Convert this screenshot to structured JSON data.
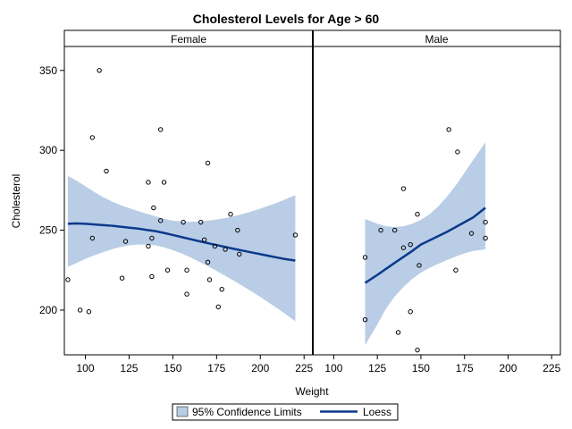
{
  "chart_data": {
    "type": "scatter",
    "title": "Cholesterol Levels for Age > 60",
    "xlabel": "Weight",
    "ylabel": "Cholesterol",
    "xlim": [
      88,
      230
    ],
    "ylim": [
      172,
      365
    ],
    "xticks": [
      100,
      125,
      150,
      175,
      200,
      225
    ],
    "yticks": [
      200,
      250,
      300,
      350
    ],
    "grid": false,
    "legend_position": "bottom",
    "colors": {
      "band": "#b9cde6",
      "line": "#0b3a8c",
      "marker": "#000000",
      "frame": "#000000"
    },
    "legend": [
      {
        "label": "95% Confidence Limits",
        "kind": "band"
      },
      {
        "label": "Loess",
        "kind": "line"
      }
    ],
    "panels": [
      {
        "name": "Female",
        "points": [
          [
            90,
            219
          ],
          [
            97,
            200
          ],
          [
            102,
            199
          ],
          [
            104,
            308
          ],
          [
            104,
            245
          ],
          [
            108,
            350
          ],
          [
            112,
            287
          ],
          [
            121,
            220
          ],
          [
            123,
            243
          ],
          [
            136,
            240
          ],
          [
            136,
            280
          ],
          [
            138,
            245
          ],
          [
            138,
            221
          ],
          [
            139,
            264
          ],
          [
            143,
            313
          ],
          [
            143,
            256
          ],
          [
            145,
            280
          ],
          [
            147,
            225
          ],
          [
            156,
            255
          ],
          [
            158,
            225
          ],
          [
            158,
            210
          ],
          [
            166,
            255
          ],
          [
            168,
            244
          ],
          [
            170,
            292
          ],
          [
            170,
            230
          ],
          [
            171,
            219
          ],
          [
            174,
            240
          ],
          [
            176,
            202
          ],
          [
            178,
            213
          ],
          [
            180,
            238
          ],
          [
            183,
            260
          ],
          [
            187,
            250
          ],
          [
            188,
            235
          ],
          [
            220,
            247
          ]
        ],
        "loess_x": [
          90,
          95,
          100,
          105,
          110,
          115,
          120,
          125,
          130,
          135,
          140,
          145,
          150,
          155,
          160,
          165,
          170,
          175,
          180,
          185,
          190,
          195,
          200,
          205,
          210,
          215,
          220
        ],
        "loess_y": [
          254,
          254.2,
          254,
          253.6,
          253.2,
          252.8,
          252.2,
          251.6,
          251,
          250.2,
          249.4,
          248.3,
          247,
          245.7,
          244.4,
          243.1,
          241.9,
          240.7,
          239.5,
          238.3,
          237.2,
          236.1,
          235,
          233.9,
          232.8,
          231.8,
          231
        ],
        "lower": [
          227,
          229.5,
          232,
          234.2,
          236.2,
          238,
          239.5,
          240.5,
          241,
          241,
          240.5,
          239.3,
          237.5,
          235.5,
          233,
          230.3,
          227.5,
          224.5,
          221.4,
          218.3,
          215,
          211.7,
          208.2,
          204.6,
          200.9,
          197,
          193
        ],
        "upper": [
          284,
          281,
          277.5,
          274,
          270.8,
          268,
          265.8,
          263.8,
          262,
          260.3,
          258.7,
          257.2,
          256,
          255.4,
          255.2,
          255.5,
          256,
          256.7,
          257.6,
          258.8,
          260.2,
          261.8,
          263.5,
          265.4,
          267.4,
          269.6,
          272
        ]
      },
      {
        "name": "Male",
        "points": [
          [
            118,
            233
          ],
          [
            118,
            194
          ],
          [
            127,
            250
          ],
          [
            135,
            250
          ],
          [
            137,
            186
          ],
          [
            140,
            239
          ],
          [
            140,
            276
          ],
          [
            144,
            241
          ],
          [
            144,
            199
          ],
          [
            148,
            260
          ],
          [
            148,
            175
          ],
          [
            149,
            228
          ],
          [
            166,
            313
          ],
          [
            170,
            225
          ],
          [
            171,
            299
          ],
          [
            179,
            248
          ],
          [
            187,
            245
          ],
          [
            187,
            255
          ]
        ],
        "loess_x": [
          118,
          125,
          130,
          135,
          140,
          145,
          150,
          155,
          160,
          165,
          170,
          175,
          180,
          187
        ],
        "loess_y": [
          217,
          222,
          225.8,
          229.6,
          233.3,
          237,
          241,
          243.7,
          246.3,
          249,
          252,
          255,
          258,
          264
        ],
        "lower": [
          178,
          191,
          201,
          208.5,
          214.5,
          219.5,
          223.5,
          226.5,
          229,
          231.3,
          233.5,
          235.5,
          237,
          238
        ],
        "upper": [
          257,
          254,
          252.5,
          252,
          252.5,
          254,
          256.5,
          260,
          265,
          271,
          278,
          286,
          294,
          305
        ]
      }
    ]
  }
}
